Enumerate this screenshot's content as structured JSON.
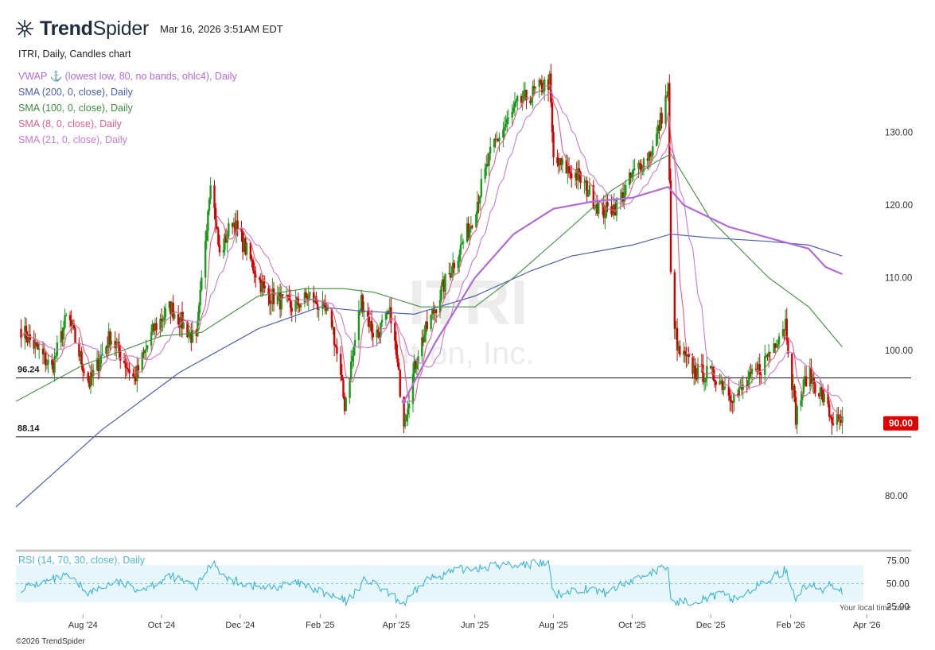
{
  "header": {
    "brand_bold": "Trend",
    "brand_light": "Spider",
    "timestamp": "Mar 16, 2026 3:51AM EDT"
  },
  "chart_title": "ITRI, Daily, Candles chart",
  "watermark": {
    "ticker": "ITRI",
    "company": "Itron, Inc."
  },
  "indicators": [
    {
      "label": "VWAP ⚓ (lowest low, 80, no bands, ohlc4), Daily",
      "color": "#b36ad8"
    },
    {
      "label": "SMA (200, 0, close), Daily",
      "color": "#4a5fb0"
    },
    {
      "label": "SMA (100, 0, close), Daily",
      "color": "#3f8f3f"
    },
    {
      "label": "SMA (8, 0, close), Daily",
      "color": "#e0608a"
    },
    {
      "label": "SMA (21, 0, close), Daily",
      "color": "#c77ad6"
    }
  ],
  "rsi_label": "RSI (14, 70, 30, close), Daily",
  "footer": {
    "copyright": "©2026 TrendSpider",
    "local_time_note": "Your local time zone"
  },
  "chart_data": {
    "type": "candlestick",
    "price_axis": {
      "ticks": [
        "130.00",
        "120.00",
        "110.00",
        "100.00",
        "80.00"
      ],
      "tick_values": [
        130,
        120,
        110,
        100,
        80
      ],
      "range": [
        75,
        140
      ]
    },
    "rsi_axis": {
      "ticks": [
        "75.00",
        "50.00",
        "25.00"
      ],
      "tick_values": [
        75,
        50,
        25
      ],
      "range": [
        22,
        78
      ],
      "band": [
        30,
        70
      ]
    },
    "x_axis": {
      "labels": [
        "Aug '24",
        "Oct '24",
        "Dec '24",
        "Feb '25",
        "Apr '25",
        "Jun '25",
        "Aug '25",
        "Oct '25",
        "Dec '25",
        "Feb '26",
        "Apr '26"
      ],
      "label_dates": [
        "2024-08-01",
        "2024-10-01",
        "2024-12-01",
        "2025-02-01",
        "2025-04-01",
        "2025-06-01",
        "2025-08-01",
        "2025-10-01",
        "2025-12-01",
        "2026-02-01",
        "2026-04-01"
      ],
      "range": [
        "2024-06-10",
        "2026-04-20"
      ]
    },
    "horizontal_lines": [
      {
        "label": "96.24",
        "value": 96.24
      },
      {
        "label": "88.14",
        "value": 88.14
      }
    ],
    "last_price": {
      "label": "90.00",
      "value": 90.0,
      "color": "#e00000"
    },
    "price_anchors": [
      [
        "2024-06-14",
        103
      ],
      [
        "2024-07-08",
        97.5
      ],
      [
        "2024-07-20",
        105
      ],
      [
        "2024-07-30",
        99
      ],
      [
        "2024-08-06",
        95.5
      ],
      [
        "2024-08-22",
        102
      ],
      [
        "2024-09-10",
        96
      ],
      [
        "2024-09-25",
        103
      ],
      [
        "2024-10-08",
        106
      ],
      [
        "2024-10-28",
        101
      ],
      [
        "2024-11-08",
        124
      ],
      [
        "2024-11-15",
        113
      ],
      [
        "2024-11-25",
        118
      ],
      [
        "2024-12-20",
        108
      ],
      [
        "2025-01-10",
        106
      ],
      [
        "2025-01-25",
        107.5
      ],
      [
        "2025-02-10",
        104
      ],
      [
        "2025-02-20",
        92.5
      ],
      [
        "2025-03-05",
        107
      ],
      [
        "2025-03-15",
        102
      ],
      [
        "2025-03-28",
        105
      ],
      [
        "2025-04-07",
        90.5
      ],
      [
        "2025-04-18",
        100
      ],
      [
        "2025-05-08",
        109
      ],
      [
        "2025-05-28",
        117
      ],
      [
        "2025-06-15",
        128
      ],
      [
        "2025-07-05",
        134
      ],
      [
        "2025-07-29",
        137
      ],
      [
        "2025-08-01",
        126
      ],
      [
        "2025-08-20",
        124
      ],
      [
        "2025-09-08",
        119
      ],
      [
        "2025-09-20",
        120
      ],
      [
        "2025-10-01",
        124
      ],
      [
        "2025-10-18",
        128
      ],
      [
        "2025-10-29",
        136
      ],
      [
        "2025-10-31",
        110
      ],
      [
        "2025-11-05",
        100
      ],
      [
        "2025-11-20",
        97
      ],
      [
        "2025-12-05",
        96.5
      ],
      [
        "2025-12-20",
        93.5
      ],
      [
        "2026-01-10",
        98
      ],
      [
        "2026-01-28",
        104
      ],
      [
        "2026-02-05",
        91
      ],
      [
        "2026-02-14",
        97
      ],
      [
        "2026-02-25",
        94
      ],
      [
        "2026-03-05",
        90.5
      ],
      [
        "2026-03-13",
        90
      ]
    ],
    "sma200": [
      [
        "2024-06-10",
        78.5
      ],
      [
        "2024-08-15",
        89
      ],
      [
        "2024-10-15",
        97
      ],
      [
        "2024-12-15",
        103
      ],
      [
        "2025-02-01",
        106
      ],
      [
        "2025-03-01",
        105.5
      ],
      [
        "2025-04-15",
        105
      ],
      [
        "2025-06-01",
        107.5
      ],
      [
        "2025-07-15",
        111
      ],
      [
        "2025-08-15",
        113
      ],
      [
        "2025-10-01",
        114.5
      ],
      [
        "2025-10-31",
        116
      ],
      [
        "2025-12-01",
        115.5
      ],
      [
        "2026-01-15",
        115
      ],
      [
        "2026-02-15",
        114.5
      ],
      [
        "2026-03-13",
        113
      ]
    ],
    "sma100": [
      [
        "2024-06-10",
        93
      ],
      [
        "2024-08-01",
        98
      ],
      [
        "2024-10-01",
        102
      ],
      [
        "2024-11-01",
        102.5
      ],
      [
        "2024-12-15",
        107.5
      ],
      [
        "2025-01-20",
        108.5
      ],
      [
        "2025-02-20",
        108.5
      ],
      [
        "2025-03-15",
        108
      ],
      [
        "2025-04-20",
        106
      ],
      [
        "2025-06-01",
        106
      ],
      [
        "2025-07-01",
        110
      ],
      [
        "2025-08-15",
        117
      ],
      [
        "2025-09-15",
        122
      ],
      [
        "2025-10-20",
        126
      ],
      [
        "2025-10-31",
        127
      ],
      [
        "2025-12-01",
        118
      ],
      [
        "2026-01-15",
        110
      ],
      [
        "2026-02-15",
        106
      ],
      [
        "2026-03-13",
        100.5
      ]
    ],
    "vwap": [
      [
        "2025-04-07",
        93
      ],
      [
        "2025-05-01",
        101
      ],
      [
        "2025-06-01",
        110
      ],
      [
        "2025-07-01",
        116
      ],
      [
        "2025-08-01",
        119.5
      ],
      [
        "2025-09-01",
        120.5
      ],
      [
        "2025-10-01",
        121
      ],
      [
        "2025-10-29",
        122.5
      ],
      [
        "2025-11-10",
        120
      ],
      [
        "2025-12-15",
        117
      ],
      [
        "2026-01-15",
        115.5
      ],
      [
        "2026-02-15",
        114
      ],
      [
        "2026-02-28",
        111.5
      ],
      [
        "2026-03-13",
        110.5
      ]
    ],
    "rsi_anchors": [
      [
        "2024-06-14",
        45
      ],
      [
        "2024-07-20",
        58
      ],
      [
        "2024-08-06",
        40
      ],
      [
        "2024-08-25",
        52
      ],
      [
        "2024-09-15",
        44
      ],
      [
        "2024-10-10",
        58
      ],
      [
        "2024-10-28",
        46
      ],
      [
        "2024-11-10",
        75
      ],
      [
        "2024-11-20",
        55
      ],
      [
        "2024-12-20",
        45
      ],
      [
        "2025-01-15",
        50
      ],
      [
        "2025-02-22",
        30
      ],
      [
        "2025-03-08",
        55
      ],
      [
        "2025-04-07",
        28
      ],
      [
        "2025-04-25",
        55
      ],
      [
        "2025-05-20",
        65
      ],
      [
        "2025-06-20",
        70
      ],
      [
        "2025-07-28",
        72
      ],
      [
        "2025-08-01",
        38
      ],
      [
        "2025-08-25",
        45
      ],
      [
        "2025-09-10",
        40
      ],
      [
        "2025-09-25",
        50
      ],
      [
        "2025-10-15",
        62
      ],
      [
        "2025-10-29",
        68
      ],
      [
        "2025-10-31",
        30
      ],
      [
        "2025-11-10",
        30
      ],
      [
        "2025-12-10",
        38
      ],
      [
        "2025-12-20",
        33
      ],
      [
        "2026-01-10",
        50
      ],
      [
        "2026-01-28",
        65
      ],
      [
        "2026-02-05",
        35
      ],
      [
        "2026-02-14",
        50
      ],
      [
        "2026-02-25",
        42
      ],
      [
        "2026-03-05",
        50
      ],
      [
        "2026-03-13",
        42
      ]
    ]
  }
}
